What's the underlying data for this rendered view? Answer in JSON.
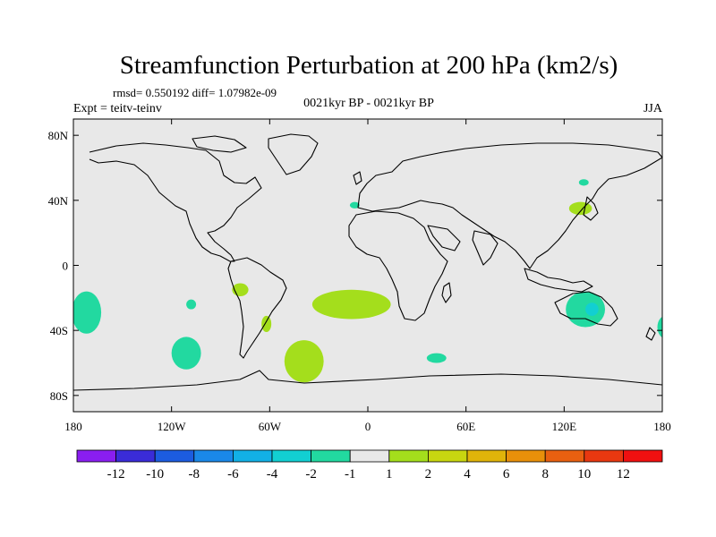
{
  "chart_data": {
    "type": "heatmap",
    "title": "Streamfunction Perturbation at 200 hPa (km2/s)",
    "stats_line": "rmsd= 0.550192 diff= 1.07982e-09",
    "experiment_label": "Expt = teitv-teinv",
    "period_label": "0021kyr BP - 0021kyr BP",
    "season_label": "JJA",
    "x_axis": {
      "min": -180,
      "max": 180,
      "ticks": [
        -180,
        -120,
        -60,
        0,
        60,
        120,
        180
      ],
      "tick_labels": [
        "180",
        "120W",
        "60W",
        "0",
        "60E",
        "120E",
        "180"
      ]
    },
    "y_axis": {
      "min": -90,
      "max": 90,
      "ticks": [
        80,
        40,
        0,
        -40,
        -80
      ],
      "tick_labels": [
        "80N",
        "40N",
        "0",
        "40S",
        "80S"
      ]
    },
    "colorbar": {
      "labels": [
        "-12",
        "-10",
        "-8",
        "-6",
        "-4",
        "-2",
        "-1",
        "1",
        "2",
        "4",
        "6",
        "8",
        "10",
        "12"
      ],
      "colors": [
        "#8a1ef0",
        "#3a2cd8",
        "#1c5ce0",
        "#1a88e8",
        "#12b0e6",
        "#12cfd2",
        "#22d9a0",
        "#e8e8e8",
        "#a4de1c",
        "#c8d610",
        "#e0b40a",
        "#e8900a",
        "#e86010",
        "#e83810",
        "#f01010"
      ]
    },
    "regions": [
      {
        "name": "contour-pos-south-atlantic",
        "color": "#a4de1c",
        "lon": -10,
        "lat": -24,
        "rlon": 24,
        "rlat": 9
      },
      {
        "name": "contour-pos-sw-atlantic",
        "color": "#a4de1c",
        "lon": -39,
        "lat": -59,
        "rlon": 12,
        "rlat": 13
      },
      {
        "name": "contour-pos-se-pacific",
        "color": "#a4de1c",
        "lon": -78,
        "lat": -15,
        "rlon": 5,
        "rlat": 4
      },
      {
        "name": "contour-pos-argentina",
        "color": "#a4de1c",
        "lon": -62,
        "lat": -36,
        "rlon": 3,
        "rlat": 5
      },
      {
        "name": "contour-pos-japan",
        "color": "#a4de1c",
        "lon": 130,
        "lat": 35,
        "rlon": 7,
        "rlat": 4
      },
      {
        "name": "contour-neg-australia",
        "color": "#22d9a0",
        "lon": 133,
        "lat": -27,
        "rlon": 12,
        "rlat": 11
      },
      {
        "name": "contour-neg-australia-core",
        "color": "#12cfd2",
        "lon": 137,
        "lat": -27,
        "rlon": 4,
        "rlat": 4
      },
      {
        "name": "contour-neg-sh-tip",
        "color": "#22d9a0",
        "lon": 182,
        "lat": -38,
        "rlon": 5,
        "rlat": 7
      },
      {
        "name": "contour-neg-se-pacific-west",
        "color": "#22d9a0",
        "lon": -172,
        "lat": -29,
        "rlon": 9,
        "rlat": 13
      },
      {
        "name": "contour-neg-south-pacific",
        "color": "#22d9a0",
        "lon": -111,
        "lat": -54,
        "rlon": 9,
        "rlat": 10
      },
      {
        "name": "contour-neg-se-pacific-small",
        "color": "#22d9a0",
        "lon": -108,
        "lat": -24,
        "rlon": 3,
        "rlat": 3
      },
      {
        "name": "contour-neg-south-indian",
        "color": "#22d9a0",
        "lon": 42,
        "lat": -57,
        "rlon": 6,
        "rlat": 3
      },
      {
        "name": "contour-neg-gibraltar",
        "color": "#22d9a0",
        "lon": -8,
        "lat": 37,
        "rlon": 3,
        "rlat": 2
      },
      {
        "name": "contour-neg-siberia",
        "color": "#22d9a0",
        "lon": 132,
        "lat": 51,
        "rlon": 3,
        "rlat": 2
      }
    ]
  }
}
